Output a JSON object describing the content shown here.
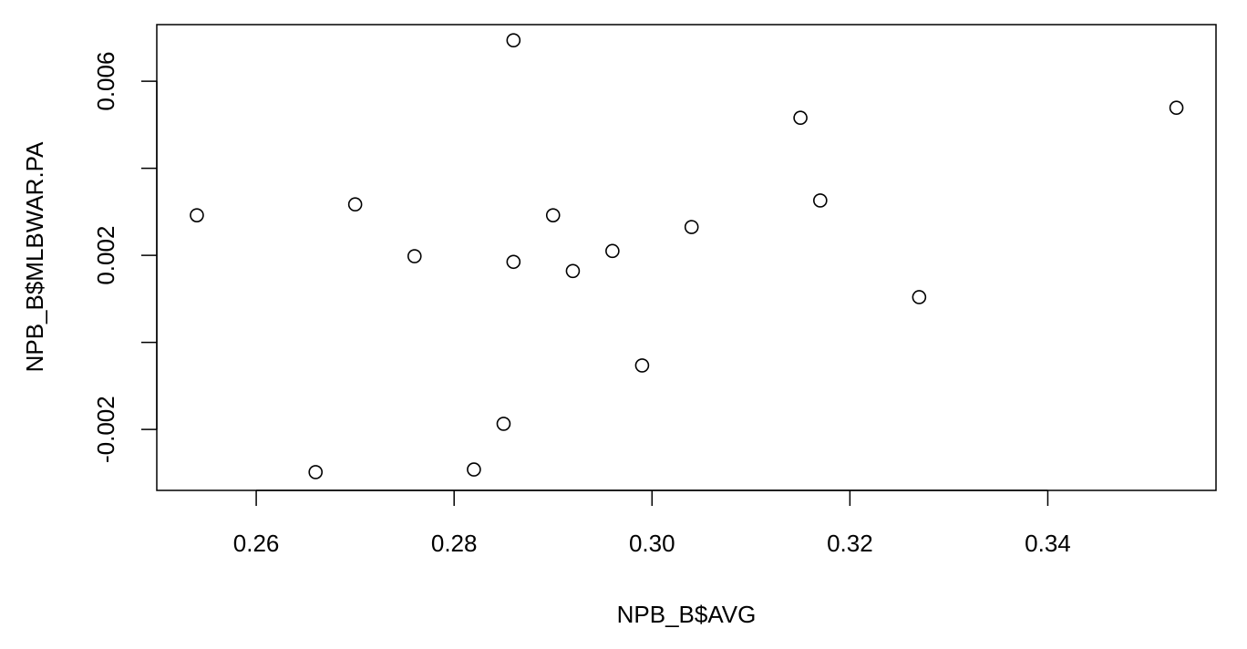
{
  "chart_data": {
    "type": "scatter",
    "x_label": "NPB_B$AVG",
    "y_label": "NPB_B$MLBWAR.PA",
    "x": [
      0.254,
      0.266,
      0.27,
      0.276,
      0.282,
      0.285,
      0.286,
      0.286,
      0.29,
      0.292,
      0.296,
      0.299,
      0.304,
      0.315,
      0.317,
      0.327,
      0.353
    ],
    "values": [
      0.00292,
      -0.00298,
      0.00317,
      0.00198,
      -0.00292,
      -0.00187,
      0.00694,
      0.00185,
      0.00292,
      0.00164,
      0.0021,
      -0.00053,
      0.00265,
      0.00516,
      0.00326,
      0.00104,
      0.00539
    ],
    "color": "#000000",
    "xlim": [
      0.24995,
      0.357
    ],
    "ylim": [
      -0.0034,
      0.0073
    ],
    "xticks": [
      0.26,
      0.28,
      {
        "value": 0.3,
        "label": "0.30"
      },
      0.32,
      0.34
    ],
    "yticks": [
      0.006,
      0.002,
      -0.002
    ],
    "yminor_ticks": [
      0.004,
      0
    ],
    "grid": false
  }
}
